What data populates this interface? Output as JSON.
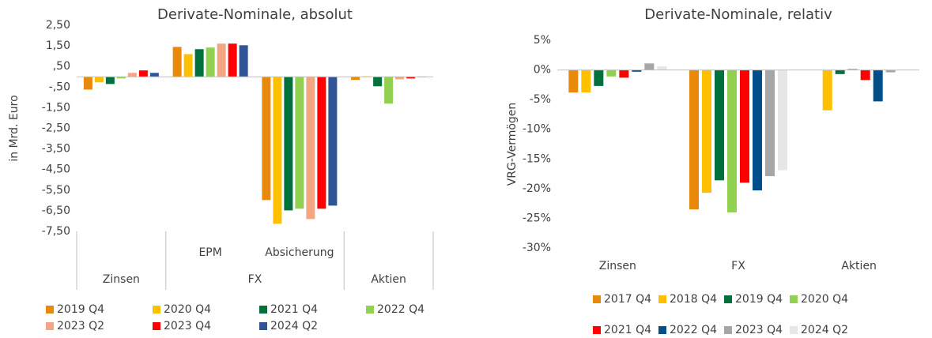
{
  "chart_data": [
    {
      "type": "bar",
      "title": "Derivate-Nominale, absolut",
      "y_label": "in Mrd. Euro",
      "categories": [
        null,
        "EPM",
        "Absicherung",
        null
      ],
      "groups": [
        {
          "name": "Zinsen",
          "count": 1
        },
        {
          "name": "FX",
          "count": 2
        },
        {
          "name": "Aktien",
          "count": 1
        }
      ],
      "ylim": [
        -7.5,
        2.5
      ],
      "yticks": [
        {
          "value": 2.5,
          "label": "2,50"
        },
        {
          "value": 1.5,
          "label": "1,50"
        },
        {
          "value": 0.5,
          "label": ",50"
        },
        {
          "value": -0.5,
          "label": "-,50"
        },
        {
          "value": -1.5,
          "label": "-1,50"
        },
        {
          "value": -2.5,
          "label": "-2,50"
        },
        {
          "value": -3.5,
          "label": "-3,50"
        },
        {
          "value": -4.5,
          "label": "-4,50"
        },
        {
          "value": -5.5,
          "label": "-5,50"
        },
        {
          "value": -6.5,
          "label": "-6,50"
        },
        {
          "value": -7.5,
          "label": "-7,50"
        }
      ],
      "series": [
        {
          "name": "2019 Q4",
          "color": "#E8890C",
          "values": [
            -0.62,
            1.45,
            -5.98,
            -0.15
          ]
        },
        {
          "name": "2020 Q4",
          "color": "#FFC000",
          "values": [
            -0.27,
            1.1,
            -7.13,
            0.03
          ]
        },
        {
          "name": "2021 Q4",
          "color": "#00703C",
          "values": [
            -0.35,
            1.34,
            -6.48,
            -0.46
          ]
        },
        {
          "name": "2022 Q4",
          "color": "#92D050",
          "values": [
            -0.08,
            1.42,
            -6.4,
            -1.3
          ]
        },
        {
          "name": "2023 Q2",
          "color": "#F4A582",
          "values": [
            0.19,
            1.61,
            -6.9,
            -0.12
          ]
        },
        {
          "name": "2023 Q4",
          "color": "#FF0000",
          "values": [
            0.31,
            1.61,
            -6.4,
            -0.08
          ]
        },
        {
          "name": "2024 Q2",
          "color": "#2F5597",
          "values": [
            0.19,
            1.53,
            -6.25,
            -0.02
          ]
        }
      ],
      "grid": false
    },
    {
      "type": "bar",
      "title": "Derivate-Nominale, relativ",
      "y_label": "VRG-Vermögen",
      "categories": [
        "Zinsen",
        "FX",
        "Aktien"
      ],
      "ylim": [
        -30,
        5
      ],
      "yticks": [
        {
          "value": 5,
          "label": "5%"
        },
        {
          "value": 0,
          "label": "0%"
        },
        {
          "value": -5,
          "label": "-5%"
        },
        {
          "value": -10,
          "label": "-10%"
        },
        {
          "value": -15,
          "label": "-15%"
        },
        {
          "value": -20,
          "label": "-20%"
        },
        {
          "value": -25,
          "label": "-25%"
        },
        {
          "value": -30,
          "label": "-30%"
        }
      ],
      "series": [
        {
          "name": "2017 Q4",
          "color": "#E8890C",
          "values": [
            -3.8,
            -23.5,
            0
          ]
        },
        {
          "name": "2018 Q4",
          "color": "#FFC000",
          "values": [
            -3.8,
            -20.7,
            -6.8
          ]
        },
        {
          "name": "2019 Q4",
          "color": "#00703C",
          "values": [
            -2.7,
            -18.6,
            -0.7
          ]
        },
        {
          "name": "2020 Q4",
          "color": "#92D050",
          "values": [
            -1.1,
            -24.0,
            0.2
          ]
        },
        {
          "name": "2021 Q4",
          "color": "#FF0000",
          "values": [
            -1.3,
            -19.0,
            -1.7
          ]
        },
        {
          "name": "2022 Q4",
          "color": "#004F8A",
          "values": [
            -0.3,
            -20.3,
            -5.3
          ]
        },
        {
          "name": "2023 Q4",
          "color": "#A6A6A6",
          "values": [
            1.1,
            -17.9,
            -0.4
          ]
        },
        {
          "name": "2024 Q2",
          "color": "#E6E6E6",
          "values": [
            0.6,
            -16.9,
            0
          ]
        }
      ],
      "grid": false
    }
  ]
}
